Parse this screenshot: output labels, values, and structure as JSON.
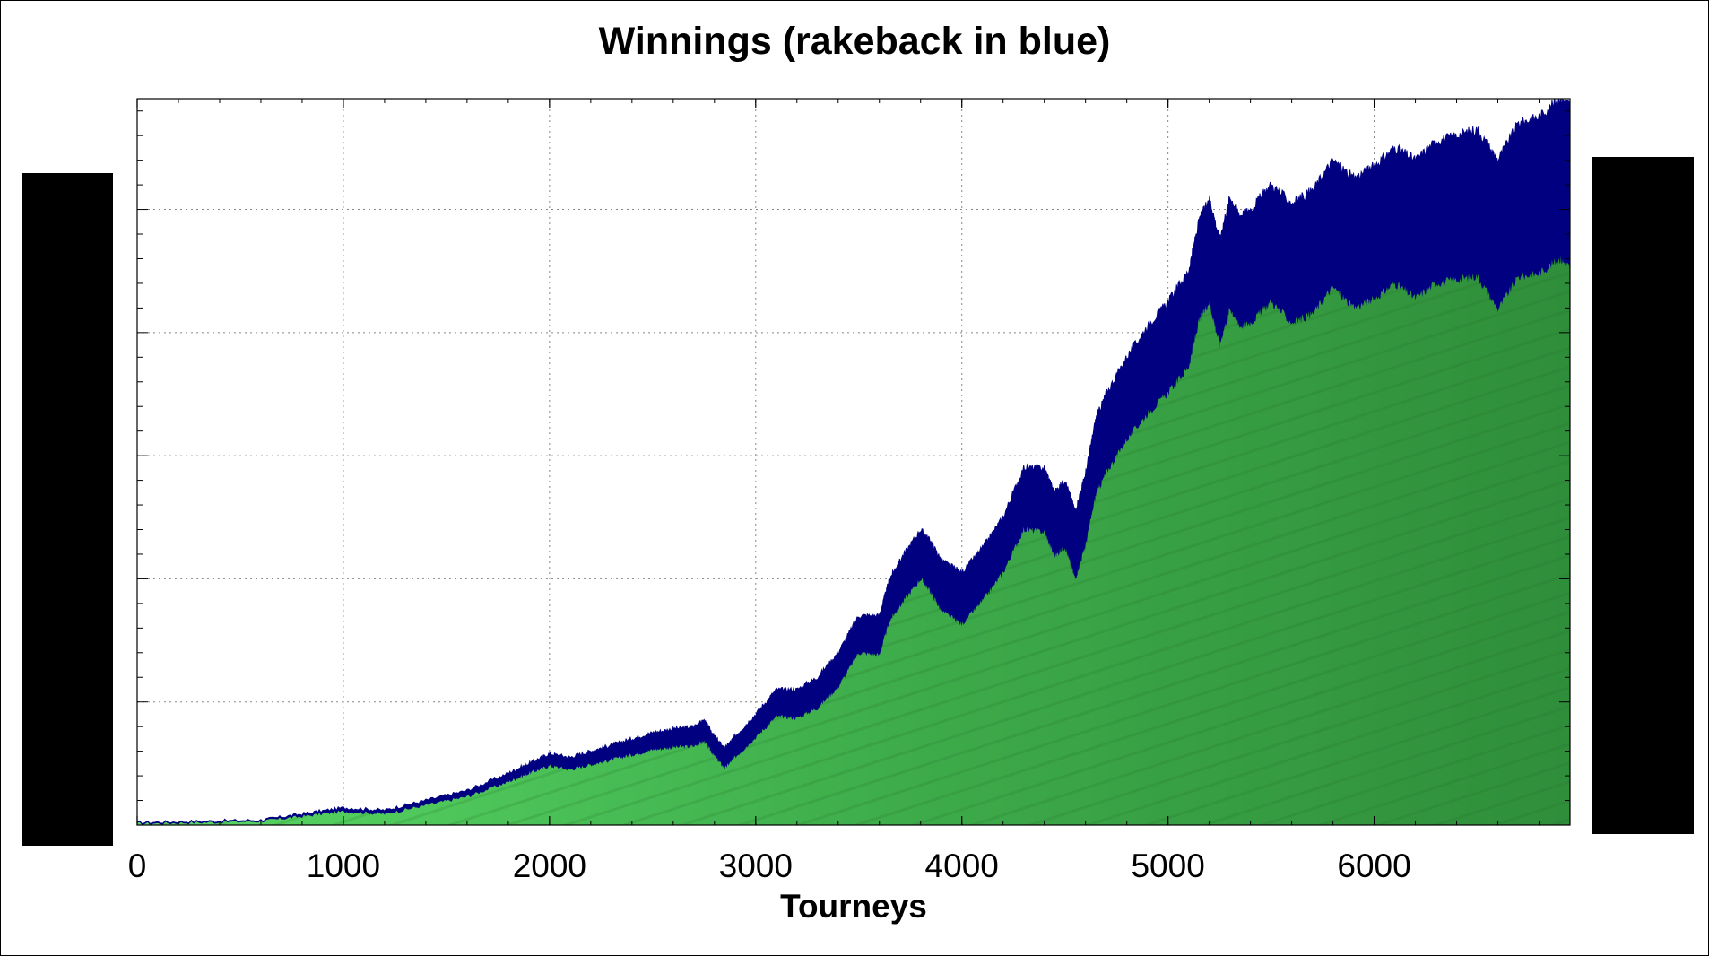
{
  "chart_data": {
    "type": "area",
    "title": "Winnings (rakeback in blue)",
    "xlabel": "Tourneys",
    "ylabel": "",
    "xlim": [
      0,
      6950
    ],
    "ylim": [
      0,
      5.9
    ],
    "x_ticks": [
      0,
      1000,
      2000,
      3000,
      4000,
      5000,
      6000
    ],
    "y_ticks_unlabeled": [
      0,
      1,
      2,
      3,
      4,
      5
    ],
    "grid": true,
    "series": [
      {
        "color": "#000080",
        "x": [
          0,
          300,
          600,
          800,
          1000,
          1200,
          1400,
          1600,
          1800,
          1900,
          2000,
          2100,
          2200,
          2300,
          2400,
          2500,
          2600,
          2700,
          2750,
          2800,
          2850,
          2900,
          3000,
          3100,
          3200,
          3300,
          3400,
          3500,
          3600,
          3650,
          3700,
          3800,
          3850,
          3900,
          4000,
          4100,
          4200,
          4300,
          4400,
          4450,
          4500,
          4550,
          4600,
          4650,
          4700,
          4800,
          4900,
          5000,
          5100,
          5150,
          5200,
          5250,
          5300,
          5350,
          5400,
          5500,
          5600,
          5700,
          5800,
          5900,
          6000,
          6100,
          6200,
          6300,
          6400,
          6500,
          6600,
          6700,
          6800,
          6900,
          6950
        ],
        "values": [
          0.02,
          0.03,
          0.04,
          0.09,
          0.14,
          0.12,
          0.2,
          0.28,
          0.42,
          0.5,
          0.58,
          0.55,
          0.6,
          0.65,
          0.7,
          0.75,
          0.78,
          0.8,
          0.85,
          0.72,
          0.62,
          0.72,
          0.9,
          1.1,
          1.1,
          1.2,
          1.4,
          1.7,
          1.7,
          2.0,
          2.15,
          2.4,
          2.3,
          2.15,
          2.05,
          2.25,
          2.5,
          2.9,
          2.9,
          2.7,
          2.8,
          2.55,
          2.85,
          3.3,
          3.5,
          3.8,
          4.05,
          4.25,
          4.5,
          4.9,
          5.1,
          4.75,
          5.1,
          4.95,
          5.0,
          5.2,
          5.05,
          5.15,
          5.4,
          5.25,
          5.35,
          5.5,
          5.4,
          5.55,
          5.6,
          5.65,
          5.4,
          5.7,
          5.75,
          5.9,
          5.85
        ]
      },
      {
        "color": "#2e9e3e",
        "x": [
          0,
          300,
          600,
          800,
          1000,
          1200,
          1400,
          1600,
          1800,
          1900,
          2000,
          2100,
          2200,
          2300,
          2400,
          2500,
          2600,
          2700,
          2750,
          2800,
          2850,
          2900,
          3000,
          3100,
          3200,
          3300,
          3400,
          3500,
          3600,
          3650,
          3700,
          3800,
          3850,
          3900,
          4000,
          4100,
          4200,
          4300,
          4400,
          4450,
          4500,
          4550,
          4600,
          4650,
          4700,
          4800,
          4900,
          5000,
          5100,
          5150,
          5200,
          5250,
          5300,
          5350,
          5400,
          5500,
          5600,
          5700,
          5800,
          5900,
          6000,
          6100,
          6200,
          6300,
          6400,
          6500,
          6600,
          6700,
          6800,
          6900,
          6950
        ],
        "values": [
          0.01,
          0.02,
          0.03,
          0.07,
          0.11,
          0.09,
          0.16,
          0.23,
          0.35,
          0.42,
          0.48,
          0.45,
          0.49,
          0.53,
          0.57,
          0.61,
          0.63,
          0.64,
          0.68,
          0.56,
          0.46,
          0.55,
          0.71,
          0.88,
          0.87,
          0.95,
          1.12,
          1.4,
          1.38,
          1.66,
          1.78,
          2.0,
          1.89,
          1.74,
          1.63,
          1.82,
          2.05,
          2.4,
          2.38,
          2.18,
          2.26,
          2.0,
          2.27,
          2.68,
          2.86,
          3.13,
          3.34,
          3.51,
          3.72,
          4.09,
          4.25,
          3.9,
          4.2,
          4.05,
          4.08,
          4.25,
          4.08,
          4.15,
          4.37,
          4.2,
          4.27,
          4.4,
          4.28,
          4.4,
          4.43,
          4.46,
          4.19,
          4.45,
          4.48,
          4.6,
          4.53
        ]
      }
    ]
  }
}
